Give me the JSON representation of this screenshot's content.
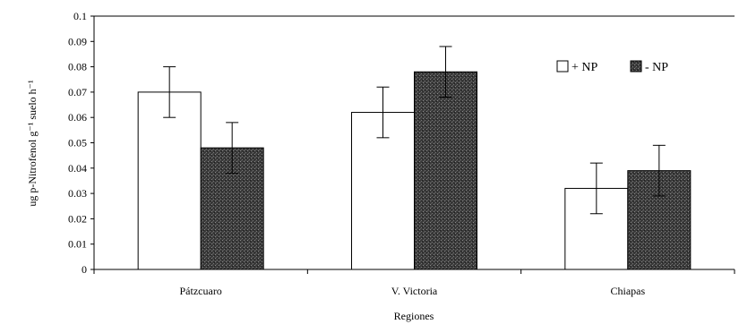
{
  "chart_data": {
    "type": "bar",
    "xlabel": "Regiones",
    "ylabel": "ug p-Nitrofenol g⁻¹ suelo h⁻¹",
    "ylim": [
      0,
      0.1
    ],
    "yticks": [
      "0",
      "0.01",
      "0.02",
      "0.03",
      "0.04",
      "0.05",
      "0.06",
      "0.07",
      "0.08",
      "0.09",
      "0.1"
    ],
    "categories": [
      "Pátzcuaro",
      "V. Victoria",
      "Chiapas"
    ],
    "series": [
      {
        "name": "+ NP",
        "values": [
          0.07,
          0.062,
          0.032
        ],
        "errors": [
          0.01,
          0.01,
          0.01
        ],
        "color": "#ffffff"
      },
      {
        "name": "- NP",
        "values": [
          0.048,
          0.078,
          0.039
        ],
        "errors": [
          0.01,
          0.01,
          0.01
        ],
        "color": "#444444"
      }
    ],
    "legend_position": "top-right",
    "grid": false
  }
}
